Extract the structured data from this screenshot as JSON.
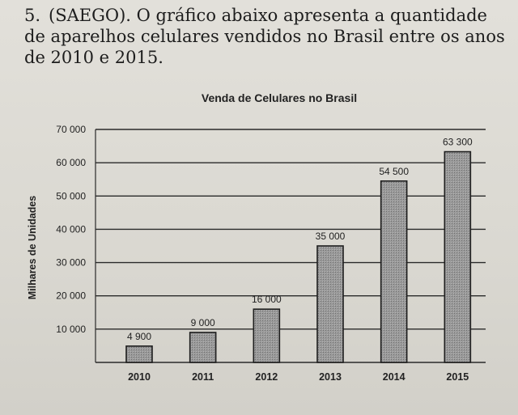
{
  "question": {
    "number": "5.",
    "text": "(SAEGO). O gráfico abaixo apresenta a quantidade de aparelhos celulares vendidos no Brasil entre os anos de 2010 e 2015."
  },
  "chart_data": {
    "type": "bar",
    "title": "Venda de Celulares no Brasil",
    "ylabel": "Milhares de Unidades",
    "xlabel": "",
    "categories": [
      "2010",
      "2011",
      "2012",
      "2013",
      "2014",
      "2015"
    ],
    "values": [
      4900,
      9000,
      16000,
      35000,
      54500,
      63300
    ],
    "value_labels": [
      "4 900",
      "9 000",
      "16 000",
      "35 000",
      "54 500",
      "63 300"
    ],
    "yticks": [
      10000,
      20000,
      30000,
      40000,
      50000,
      60000,
      70000
    ],
    "ytick_labels": [
      "10 000",
      "20 000",
      "30 000",
      "40 000",
      "50 000",
      "60 000",
      "70 000"
    ],
    "ylim": [
      0,
      70000
    ],
    "grid": true,
    "legend": "none",
    "colors": {
      "bar_fill": "#8f8f8f",
      "bar_stroke": "#1e1e1e",
      "grid": "#2a2a2a"
    }
  }
}
